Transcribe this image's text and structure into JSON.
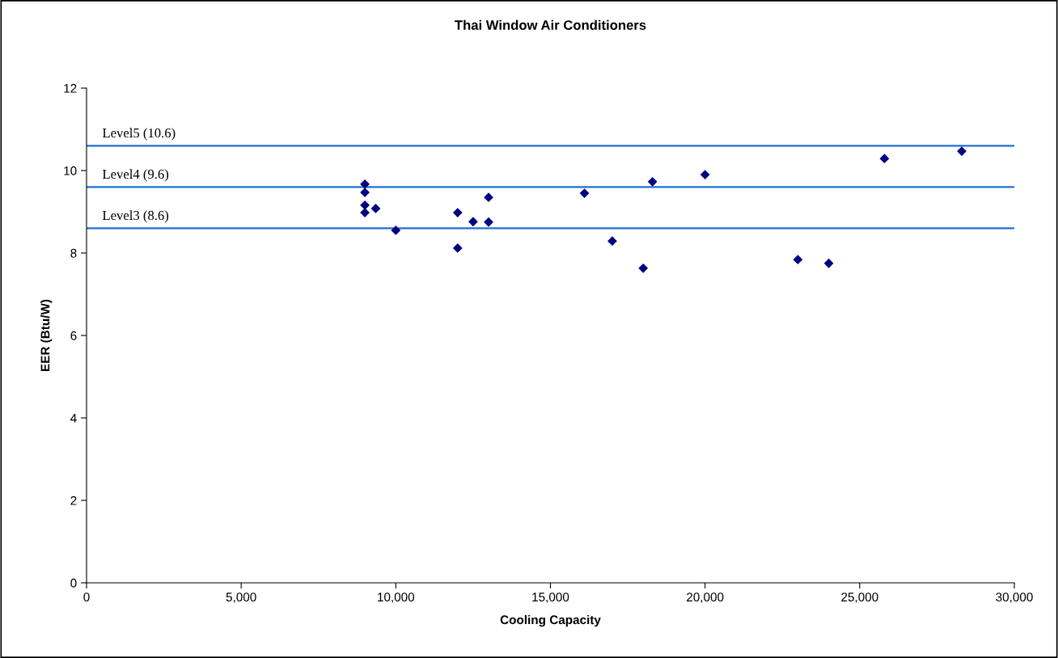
{
  "chart_data": {
    "type": "scatter",
    "title": "Thai Window Air Conditioners",
    "xlabel": "Cooling Capacity",
    "ylabel": "EER (Btu/W)",
    "x": [
      9000,
      9000,
      9000,
      9000,
      9350,
      10000,
      12000,
      12000,
      12500,
      13000,
      13000,
      16100,
      17000,
      18000,
      18300,
      20000,
      23000,
      24000,
      25800,
      28300
    ],
    "series": [
      {
        "color": "#000080",
        "values": [
          9.67,
          9.47,
          9.16,
          8.98,
          9.08,
          8.55,
          8.98,
          8.12,
          8.76,
          9.35,
          8.75,
          9.45,
          8.29,
          7.63,
          9.73,
          9.9,
          7.84,
          7.75,
          10.29,
          10.47
        ]
      }
    ],
    "marker": "diamond",
    "xlim": [
      0,
      30000
    ],
    "xticks": [
      {
        "value": 0,
        "label": "0"
      },
      {
        "value": 5000,
        "label": "5,000"
      },
      {
        "value": 10000,
        "label": "10,000"
      },
      {
        "value": 15000,
        "label": "15,000"
      },
      {
        "value": 20000,
        "label": "20,000"
      },
      {
        "value": 25000,
        "label": "25,000"
      },
      {
        "value": 30000,
        "label": "30,000"
      }
    ],
    "ylim": [
      0,
      12
    ],
    "yticks": [
      0,
      2,
      4,
      6,
      8,
      10,
      12
    ],
    "ref_lines": [
      {
        "axis": "y",
        "value": 10.6,
        "label": "Level5 (10.6)",
        "color": "#1f6fd1"
      },
      {
        "axis": "y",
        "value": 9.6,
        "label": "Level4 (9.6)",
        "color": "#1f6fd1"
      },
      {
        "axis": "y",
        "value": 8.6,
        "label": "Level3 (8.6)",
        "color": "#1f6fd1"
      }
    ],
    "grid": false
  }
}
